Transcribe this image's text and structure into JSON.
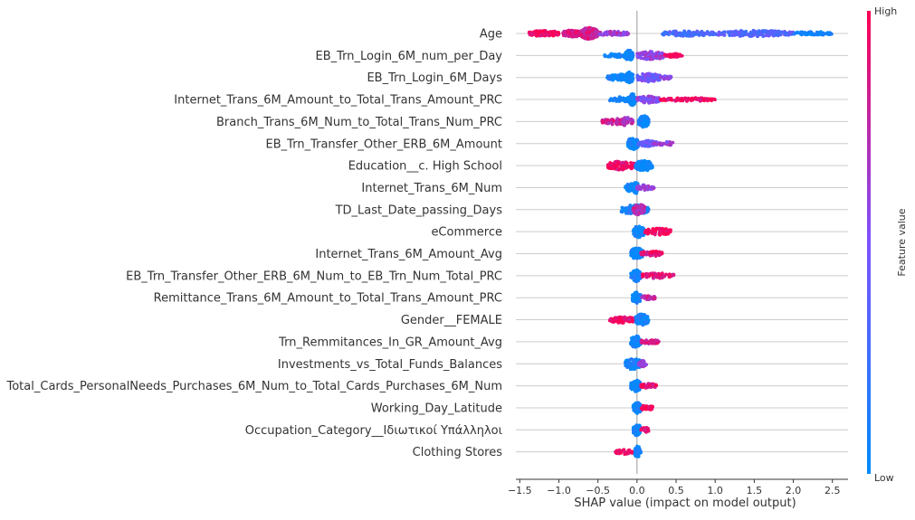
{
  "chart_data": {
    "type": "scatter",
    "subtype": "shap-beeswarm",
    "xlabel": "SHAP value (impact on model output)",
    "xlim": [
      -1.55,
      2.7
    ],
    "xticks": [
      -1.5,
      -1.0,
      -0.5,
      0.0,
      0.5,
      1.0,
      1.5,
      2.0,
      2.5
    ],
    "xtick_labels": [
      "−1.5",
      "−1.0",
      "−0.5",
      "0.0",
      "0.5",
      "1.0",
      "1.5",
      "2.0",
      "2.5"
    ],
    "grid": "horizontal per feature",
    "colorbar": {
      "label": "Feature value",
      "high_label": "High",
      "low_label": "Low",
      "low_color": "#008bfb",
      "mid_color": "#7c52ff",
      "high_color": "#ff0052"
    },
    "features": [
      {
        "name": "Age",
        "blobs": [
          {
            "lo": -1.38,
            "hi": -1.0,
            "spread": 0.5,
            "n": 120,
            "color": 0.95
          },
          {
            "lo": -0.95,
            "hi": -0.7,
            "spread": 0.6,
            "n": 90,
            "color": 0.85
          },
          {
            "lo": -0.72,
            "hi": -0.5,
            "spread": 1.0,
            "n": 160,
            "color": 0.82
          },
          {
            "lo": -0.5,
            "hi": -0.1,
            "spread": 0.35,
            "n": 60,
            "color": 0.65
          },
          {
            "lo": 0.32,
            "hi": 1.0,
            "spread": 0.45,
            "n": 110,
            "color": 0.3
          },
          {
            "lo": 1.0,
            "hi": 2.0,
            "spread": 0.5,
            "n": 160,
            "color": 0.35
          },
          {
            "lo": 2.0,
            "hi": 2.5,
            "spread": 0.3,
            "n": 60,
            "color": 0.05
          }
        ]
      },
      {
        "name": "EB_Trn_Login_6M_num_per_Day",
        "blobs": [
          {
            "lo": -0.42,
            "hi": -0.05,
            "spread": 0.35,
            "n": 50,
            "color": 0.05
          },
          {
            "lo": -0.15,
            "hi": -0.05,
            "spread": 0.9,
            "n": 60,
            "color": 0.0
          },
          {
            "lo": 0.0,
            "hi": 0.35,
            "spread": 0.7,
            "n": 90,
            "color": 0.6
          },
          {
            "lo": 0.35,
            "hi": 0.58,
            "spread": 0.3,
            "n": 35,
            "color": 0.95
          }
        ]
      },
      {
        "name": "EB_Trn_Login_6M_Days",
        "blobs": [
          {
            "lo": -0.38,
            "hi": -0.05,
            "spread": 0.55,
            "n": 70,
            "color": 0.05
          },
          {
            "lo": -0.15,
            "hi": -0.05,
            "spread": 1.0,
            "n": 70,
            "color": 0.05
          },
          {
            "lo": 0.0,
            "hi": 0.3,
            "spread": 0.75,
            "n": 90,
            "color": 0.45
          },
          {
            "lo": 0.3,
            "hi": 0.45,
            "spread": 0.3,
            "n": 25,
            "color": 0.55
          }
        ]
      },
      {
        "name": "Internet_Trans_6M_Amount_to_Total_Trans_Amount_PRC",
        "blobs": [
          {
            "lo": -0.35,
            "hi": -0.05,
            "spread": 0.45,
            "n": 60,
            "color": 0.05
          },
          {
            "lo": -0.1,
            "hi": -0.02,
            "spread": 1.0,
            "n": 60,
            "color": 0.05
          },
          {
            "lo": 0.0,
            "hi": 0.3,
            "spread": 0.6,
            "n": 70,
            "color": 0.55
          },
          {
            "lo": 0.3,
            "hi": 1.0,
            "spread": 0.3,
            "n": 90,
            "color": 0.95
          }
        ]
      },
      {
        "name": "Branch_Trans_6M_Num_to_Total_Trans_Num_PRC",
        "blobs": [
          {
            "lo": -0.45,
            "hi": -0.12,
            "spread": 0.5,
            "n": 70,
            "color": 0.8
          },
          {
            "lo": -0.2,
            "hi": -0.05,
            "spread": 0.75,
            "n": 40,
            "color": 0.7
          },
          {
            "lo": 0.02,
            "hi": 0.15,
            "spread": 1.0,
            "n": 80,
            "color": 0.05
          }
        ]
      },
      {
        "name": "EB_Trn_Transfer_Other_ERB_6M_Amount",
        "blobs": [
          {
            "lo": -0.12,
            "hi": 0.02,
            "spread": 1.0,
            "n": 80,
            "color": 0.05
          },
          {
            "lo": 0.02,
            "hi": 0.25,
            "spread": 0.5,
            "n": 60,
            "color": 0.4
          },
          {
            "lo": 0.2,
            "hi": 0.47,
            "spread": 0.35,
            "n": 35,
            "color": 0.6
          }
        ]
      },
      {
        "name": "Education__c. High School",
        "blobs": [
          {
            "lo": -0.38,
            "hi": -0.02,
            "spread": 0.75,
            "n": 110,
            "color": 0.95
          },
          {
            "lo": -0.02,
            "hi": 0.2,
            "spread": 0.9,
            "n": 90,
            "color": 0.05
          }
        ]
      },
      {
        "name": "Internet_Trans_6M_Num",
        "blobs": [
          {
            "lo": -0.15,
            "hi": 0.0,
            "spread": 0.7,
            "n": 70,
            "color": 0.05
          },
          {
            "lo": -0.05,
            "hi": 0.02,
            "spread": 1.0,
            "n": 40,
            "color": 0.05
          },
          {
            "lo": 0.0,
            "hi": 0.22,
            "spread": 0.45,
            "n": 50,
            "color": 0.6
          }
        ]
      },
      {
        "name": "TD_Last_Date_passing_Days",
        "blobs": [
          {
            "lo": -0.2,
            "hi": 0.15,
            "spread": 0.8,
            "n": 110,
            "color": 0.1
          },
          {
            "lo": -0.05,
            "hi": 0.1,
            "spread": 1.0,
            "n": 50,
            "color": 0.75
          }
        ]
      },
      {
        "name": "eCommerce",
        "blobs": [
          {
            "lo": -0.05,
            "hi": 0.1,
            "spread": 1.0,
            "n": 70,
            "color": 0.05
          },
          {
            "lo": 0.1,
            "hi": 0.45,
            "spread": 0.6,
            "n": 70,
            "color": 0.95
          }
        ]
      },
      {
        "name": "Internet_Trans_6M_Amount_Avg",
        "blobs": [
          {
            "lo": -0.08,
            "hi": 0.08,
            "spread": 1.0,
            "n": 80,
            "color": 0.05
          },
          {
            "lo": 0.05,
            "hi": 0.33,
            "spread": 0.45,
            "n": 50,
            "color": 0.9
          }
        ]
      },
      {
        "name": "EB_Trn_Transfer_Other_ERB_6M_Num_to_EB_Trn_Num_Total_PRC",
        "blobs": [
          {
            "lo": -0.08,
            "hi": 0.05,
            "spread": 1.0,
            "n": 80,
            "color": 0.05
          },
          {
            "lo": 0.05,
            "hi": 0.47,
            "spread": 0.5,
            "n": 60,
            "color": 0.9
          }
        ]
      },
      {
        "name": "Remittance_Trans_6M_Amount_to_Total_Trans_Amount_PRC",
        "blobs": [
          {
            "lo": -0.06,
            "hi": 0.05,
            "spread": 1.0,
            "n": 70,
            "color": 0.05
          },
          {
            "lo": 0.05,
            "hi": 0.23,
            "spread": 0.35,
            "n": 35,
            "color": 0.75
          }
        ]
      },
      {
        "name": "Gender__FEMALE",
        "blobs": [
          {
            "lo": -0.35,
            "hi": -0.02,
            "spread": 0.55,
            "n": 80,
            "color": 0.95
          },
          {
            "lo": -0.02,
            "hi": 0.15,
            "spread": 1.0,
            "n": 70,
            "color": 0.05
          }
        ]
      },
      {
        "name": "Trn_Remmitances_In_GR_Amount_Avg",
        "blobs": [
          {
            "lo": -0.08,
            "hi": 0.05,
            "spread": 1.0,
            "n": 70,
            "color": 0.05
          },
          {
            "lo": 0.05,
            "hi": 0.28,
            "spread": 0.4,
            "n": 45,
            "color": 0.85
          }
        ]
      },
      {
        "name": "Investments_vs_Total_Funds_Balances",
        "blobs": [
          {
            "lo": -0.15,
            "hi": 0.05,
            "spread": 1.0,
            "n": 80,
            "color": 0.05
          },
          {
            "lo": 0.02,
            "hi": 0.12,
            "spread": 0.55,
            "n": 30,
            "color": 0.6
          }
        ]
      },
      {
        "name": "Total_Cards_PersonalNeeds_Purchases_6M_Num_to_Total_Cards_Purchases_6M_Num",
        "blobs": [
          {
            "lo": -0.08,
            "hi": 0.05,
            "spread": 1.0,
            "n": 70,
            "color": 0.05
          },
          {
            "lo": 0.05,
            "hi": 0.25,
            "spread": 0.4,
            "n": 45,
            "color": 0.9
          }
        ]
      },
      {
        "name": "Working_Day_Latitude",
        "blobs": [
          {
            "lo": -0.05,
            "hi": 0.05,
            "spread": 1.0,
            "n": 60,
            "color": 0.05
          },
          {
            "lo": 0.05,
            "hi": 0.2,
            "spread": 0.45,
            "n": 30,
            "color": 0.95
          }
        ]
      },
      {
        "name": "Occupation_Category__Ιδιωτικοί Υπάλληλοι",
        "blobs": [
          {
            "lo": -0.05,
            "hi": 0.05,
            "spread": 1.0,
            "n": 60,
            "color": 0.05
          },
          {
            "lo": 0.05,
            "hi": 0.15,
            "spread": 0.45,
            "n": 25,
            "color": 0.95
          }
        ]
      },
      {
        "name": "Clothing Stores",
        "blobs": [
          {
            "lo": -0.28,
            "hi": -0.03,
            "spread": 0.4,
            "n": 45,
            "color": 0.95
          },
          {
            "lo": -0.03,
            "hi": 0.05,
            "spread": 1.0,
            "n": 50,
            "color": 0.05
          }
        ]
      }
    ]
  }
}
